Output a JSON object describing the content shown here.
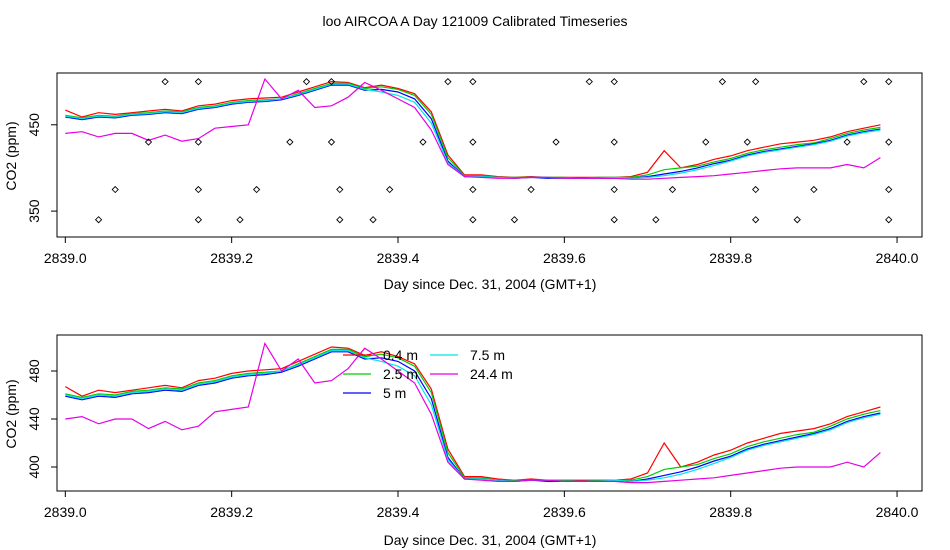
{
  "figure": {
    "title": "loo AIRCOA A  Day 121009  Calibrated Timeseries"
  },
  "legend": [
    {
      "label": "0.4 m",
      "color": "#ff0000"
    },
    {
      "label": "2.5 m",
      "color": "#00cd00"
    },
    {
      "label": "5 m",
      "color": "#0000ff"
    },
    {
      "label": "7.5 m",
      "color": "#00e5e5"
    },
    {
      "label": "24.4 m",
      "color": "#e500e5"
    }
  ],
  "chart_data": [
    {
      "type": "line",
      "xlabel": "Day since Dec. 31, 2004 (GMT+1)",
      "ylabel": "CO2 (ppm)",
      "xlim": [
        2838.99,
        2840.03
      ],
      "ylim": [
        320,
        510
      ],
      "xticks": [
        "2839.0",
        "2839.2",
        "2839.4",
        "2839.6",
        "2839.8",
        "2840.0"
      ],
      "yticks": [
        "350",
        "450"
      ],
      "grid": false,
      "legend": "none",
      "series_ref": "shared",
      "scatter_series": {
        "name": "",
        "x": [
          2839.12,
          2839.16,
          2839.29,
          2839.32,
          2839.46,
          2839.49,
          2839.63,
          2839.66,
          2839.79,
          2839.83,
          2839.96,
          2839.99,
          2839.1,
          2839.16,
          2839.27,
          2839.32,
          2839.43,
          2839.49,
          2839.59,
          2839.66,
          2839.77,
          2839.82,
          2839.94,
          2839.99,
          2839.06,
          2839.16,
          2839.23,
          2839.33,
          2839.39,
          2839.49,
          2839.56,
          2839.66,
          2839.73,
          2839.83,
          2839.9,
          2839.99,
          2839.04,
          2839.16,
          2839.21,
          2839.33,
          2839.37,
          2839.49,
          2839.54,
          2839.66,
          2839.71,
          2839.83,
          2839.88,
          2839.99
        ],
        "y": [
          500,
          500,
          500,
          500,
          500,
          500,
          500,
          500,
          500,
          500,
          500,
          500,
          430,
          430,
          430,
          430,
          430,
          430,
          430,
          430,
          430,
          430,
          430,
          430,
          375,
          375,
          375,
          375,
          375,
          375,
          375,
          375,
          375,
          375,
          375,
          375,
          340,
          340,
          340,
          340,
          340,
          340,
          340,
          340,
          340,
          340,
          340,
          340
        ]
      }
    },
    {
      "type": "line",
      "xlabel": "Day since Dec. 31, 2004 (GMT+1)",
      "ylabel": "CO2 (ppm)",
      "xlim": [
        2838.99,
        2840.03
      ],
      "ylim": [
        380,
        510
      ],
      "xticks": [
        "2839.0",
        "2839.2",
        "2839.4",
        "2839.6",
        "2839.8",
        "2840.0"
      ],
      "yticks": [
        "400",
        "440",
        "480"
      ],
      "grid": false,
      "legend": "top-center",
      "series_ref": "shared"
    }
  ],
  "series": [
    {
      "name": "0.4 m",
      "color": "#ff0000",
      "x": [
        2839.0,
        2839.02,
        2839.04,
        2839.06,
        2839.08,
        2839.1,
        2839.12,
        2839.14,
        2839.16,
        2839.18,
        2839.2,
        2839.22,
        2839.24,
        2839.26,
        2839.28,
        2839.3,
        2839.32,
        2839.34,
        2839.36,
        2839.38,
        2839.4,
        2839.42,
        2839.44,
        2839.46,
        2839.48,
        2839.5,
        2839.52,
        2839.54,
        2839.56,
        2839.58,
        2839.6,
        2839.62,
        2839.64,
        2839.66,
        2839.68,
        2839.7,
        2839.72,
        2839.74,
        2839.76,
        2839.78,
        2839.8,
        2839.82,
        2839.84,
        2839.86,
        2839.88,
        2839.9,
        2839.92,
        2839.94,
        2839.96,
        2839.98
      ],
      "y": [
        467,
        459,
        464,
        462,
        464,
        466,
        468,
        466,
        472,
        474,
        478,
        480,
        481,
        482,
        488,
        494,
        500,
        499,
        493,
        496,
        492,
        486,
        465,
        415,
        392,
        392,
        390,
        389,
        390,
        389,
        389,
        389,
        389,
        389,
        390,
        395,
        420,
        400,
        404,
        410,
        414,
        420,
        424,
        428,
        430,
        432,
        436,
        442,
        446,
        450
      ]
    },
    {
      "name": "2.5 m",
      "color": "#00cd00",
      "x": [
        2839.0,
        2839.02,
        2839.04,
        2839.06,
        2839.08,
        2839.1,
        2839.12,
        2839.14,
        2839.16,
        2839.18,
        2839.2,
        2839.22,
        2839.24,
        2839.26,
        2839.28,
        2839.3,
        2839.32,
        2839.34,
        2839.36,
        2839.38,
        2839.4,
        2839.42,
        2839.44,
        2839.46,
        2839.48,
        2839.5,
        2839.52,
        2839.54,
        2839.56,
        2839.58,
        2839.6,
        2839.62,
        2839.64,
        2839.66,
        2839.68,
        2839.7,
        2839.72,
        2839.74,
        2839.76,
        2839.78,
        2839.8,
        2839.82,
        2839.84,
        2839.86,
        2839.88,
        2839.9,
        2839.92,
        2839.94,
        2839.96,
        2839.98
      ],
      "y": [
        461,
        458,
        461,
        460,
        463,
        464,
        466,
        465,
        470,
        472,
        476,
        478,
        479,
        480,
        486,
        492,
        498,
        498,
        492,
        494,
        491,
        484,
        462,
        412,
        391,
        391,
        389,
        389,
        389,
        389,
        389,
        388,
        389,
        389,
        389,
        392,
        398,
        400,
        402,
        407,
        411,
        417,
        421,
        424,
        427,
        429,
        434,
        440,
        444,
        447
      ]
    },
    {
      "name": "5 m",
      "color": "#0000ff",
      "x": [
        2839.0,
        2839.02,
        2839.04,
        2839.06,
        2839.08,
        2839.1,
        2839.12,
        2839.14,
        2839.16,
        2839.18,
        2839.2,
        2839.22,
        2839.24,
        2839.26,
        2839.28,
        2839.3,
        2839.32,
        2839.34,
        2839.36,
        2839.38,
        2839.4,
        2839.42,
        2839.44,
        2839.46,
        2839.48,
        2839.5,
        2839.52,
        2839.54,
        2839.56,
        2839.58,
        2839.6,
        2839.62,
        2839.64,
        2839.66,
        2839.68,
        2839.7,
        2839.72,
        2839.74,
        2839.76,
        2839.78,
        2839.8,
        2839.82,
        2839.84,
        2839.86,
        2839.88,
        2839.9,
        2839.92,
        2839.94,
        2839.96,
        2839.98
      ],
      "y": [
        459,
        456,
        459,
        458,
        461,
        462,
        464,
        463,
        468,
        470,
        474,
        476,
        477,
        479,
        484,
        490,
        496,
        496,
        490,
        491,
        488,
        480,
        457,
        408,
        390,
        390,
        389,
        388,
        389,
        388,
        388,
        388,
        388,
        388,
        388,
        390,
        393,
        396,
        400,
        405,
        409,
        415,
        419,
        422,
        425,
        428,
        432,
        438,
        442,
        445
      ]
    },
    {
      "name": "7.5 m",
      "color": "#00e5e5",
      "x": [
        2839.0,
        2839.02,
        2839.04,
        2839.06,
        2839.08,
        2839.1,
        2839.12,
        2839.14,
        2839.16,
        2839.18,
        2839.2,
        2839.22,
        2839.24,
        2839.26,
        2839.28,
        2839.3,
        2839.32,
        2839.34,
        2839.36,
        2839.38,
        2839.4,
        2839.42,
        2839.44,
        2839.46,
        2839.48,
        2839.5,
        2839.52,
        2839.54,
        2839.56,
        2839.58,
        2839.6,
        2839.62,
        2839.64,
        2839.66,
        2839.68,
        2839.7,
        2839.72,
        2839.74,
        2839.76,
        2839.78,
        2839.8,
        2839.82,
        2839.84,
        2839.86,
        2839.88,
        2839.9,
        2839.92,
        2839.94,
        2839.96,
        2839.98
      ],
      "y": [
        460,
        457,
        460,
        459,
        462,
        463,
        465,
        464,
        469,
        471,
        475,
        477,
        478,
        480,
        485,
        491,
        497,
        497,
        491,
        488,
        484,
        476,
        452,
        406,
        390,
        390,
        389,
        388,
        389,
        389,
        388,
        388,
        388,
        389,
        388,
        389,
        391,
        394,
        398,
        403,
        408,
        414,
        418,
        421,
        424,
        427,
        431,
        437,
        441,
        444
      ]
    },
    {
      "name": "24.4 m",
      "color": "#e500e5",
      "x": [
        2839.0,
        2839.02,
        2839.04,
        2839.06,
        2839.08,
        2839.1,
        2839.12,
        2839.14,
        2839.16,
        2839.18,
        2839.2,
        2839.22,
        2839.24,
        2839.26,
        2839.28,
        2839.3,
        2839.32,
        2839.34,
        2839.36,
        2839.38,
        2839.4,
        2839.42,
        2839.44,
        2839.46,
        2839.48,
        2839.5,
        2839.52,
        2839.54,
        2839.56,
        2839.58,
        2839.6,
        2839.62,
        2839.64,
        2839.66,
        2839.68,
        2839.7,
        2839.72,
        2839.74,
        2839.76,
        2839.78,
        2839.8,
        2839.82,
        2839.84,
        2839.86,
        2839.88,
        2839.9,
        2839.92,
        2839.94,
        2839.96,
        2839.98
      ],
      "y": [
        440,
        442,
        436,
        440,
        440,
        432,
        438,
        431,
        434,
        446,
        448,
        450,
        503,
        480,
        490,
        470,
        472,
        482,
        499,
        490,
        480,
        470,
        444,
        404,
        390,
        389,
        388,
        388,
        389,
        389,
        388,
        388,
        388,
        388,
        387,
        387,
        388,
        389,
        390,
        391,
        393,
        395,
        397,
        399,
        400,
        400,
        400,
        404,
        400,
        412
      ]
    }
  ]
}
